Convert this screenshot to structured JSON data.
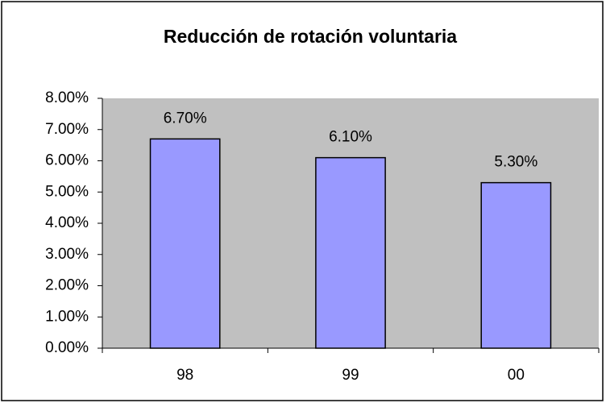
{
  "chart_data": {
    "type": "bar",
    "title": "Reducción de rotación voluntaria",
    "categories": [
      "98",
      "99",
      "00"
    ],
    "values": [
      6.7,
      6.1,
      5.3
    ],
    "value_labels": [
      "6.70%",
      "6.10%",
      "5.30%"
    ],
    "color": "#9999ff",
    "ylim": [
      0,
      8
    ],
    "yticks": [
      {
        "value": 0,
        "label": "0.00%"
      },
      {
        "value": 1,
        "label": "1.00%"
      },
      {
        "value": 2,
        "label": "2.00%"
      },
      {
        "value": 3,
        "label": "3.00%"
      },
      {
        "value": 4,
        "label": "4.00%"
      },
      {
        "value": 5,
        "label": "5.00%"
      },
      {
        "value": 6,
        "label": "6.00%"
      },
      {
        "value": 7,
        "label": "7.00%"
      },
      {
        "value": 8,
        "label": "8.00%"
      }
    ],
    "grid": false
  }
}
